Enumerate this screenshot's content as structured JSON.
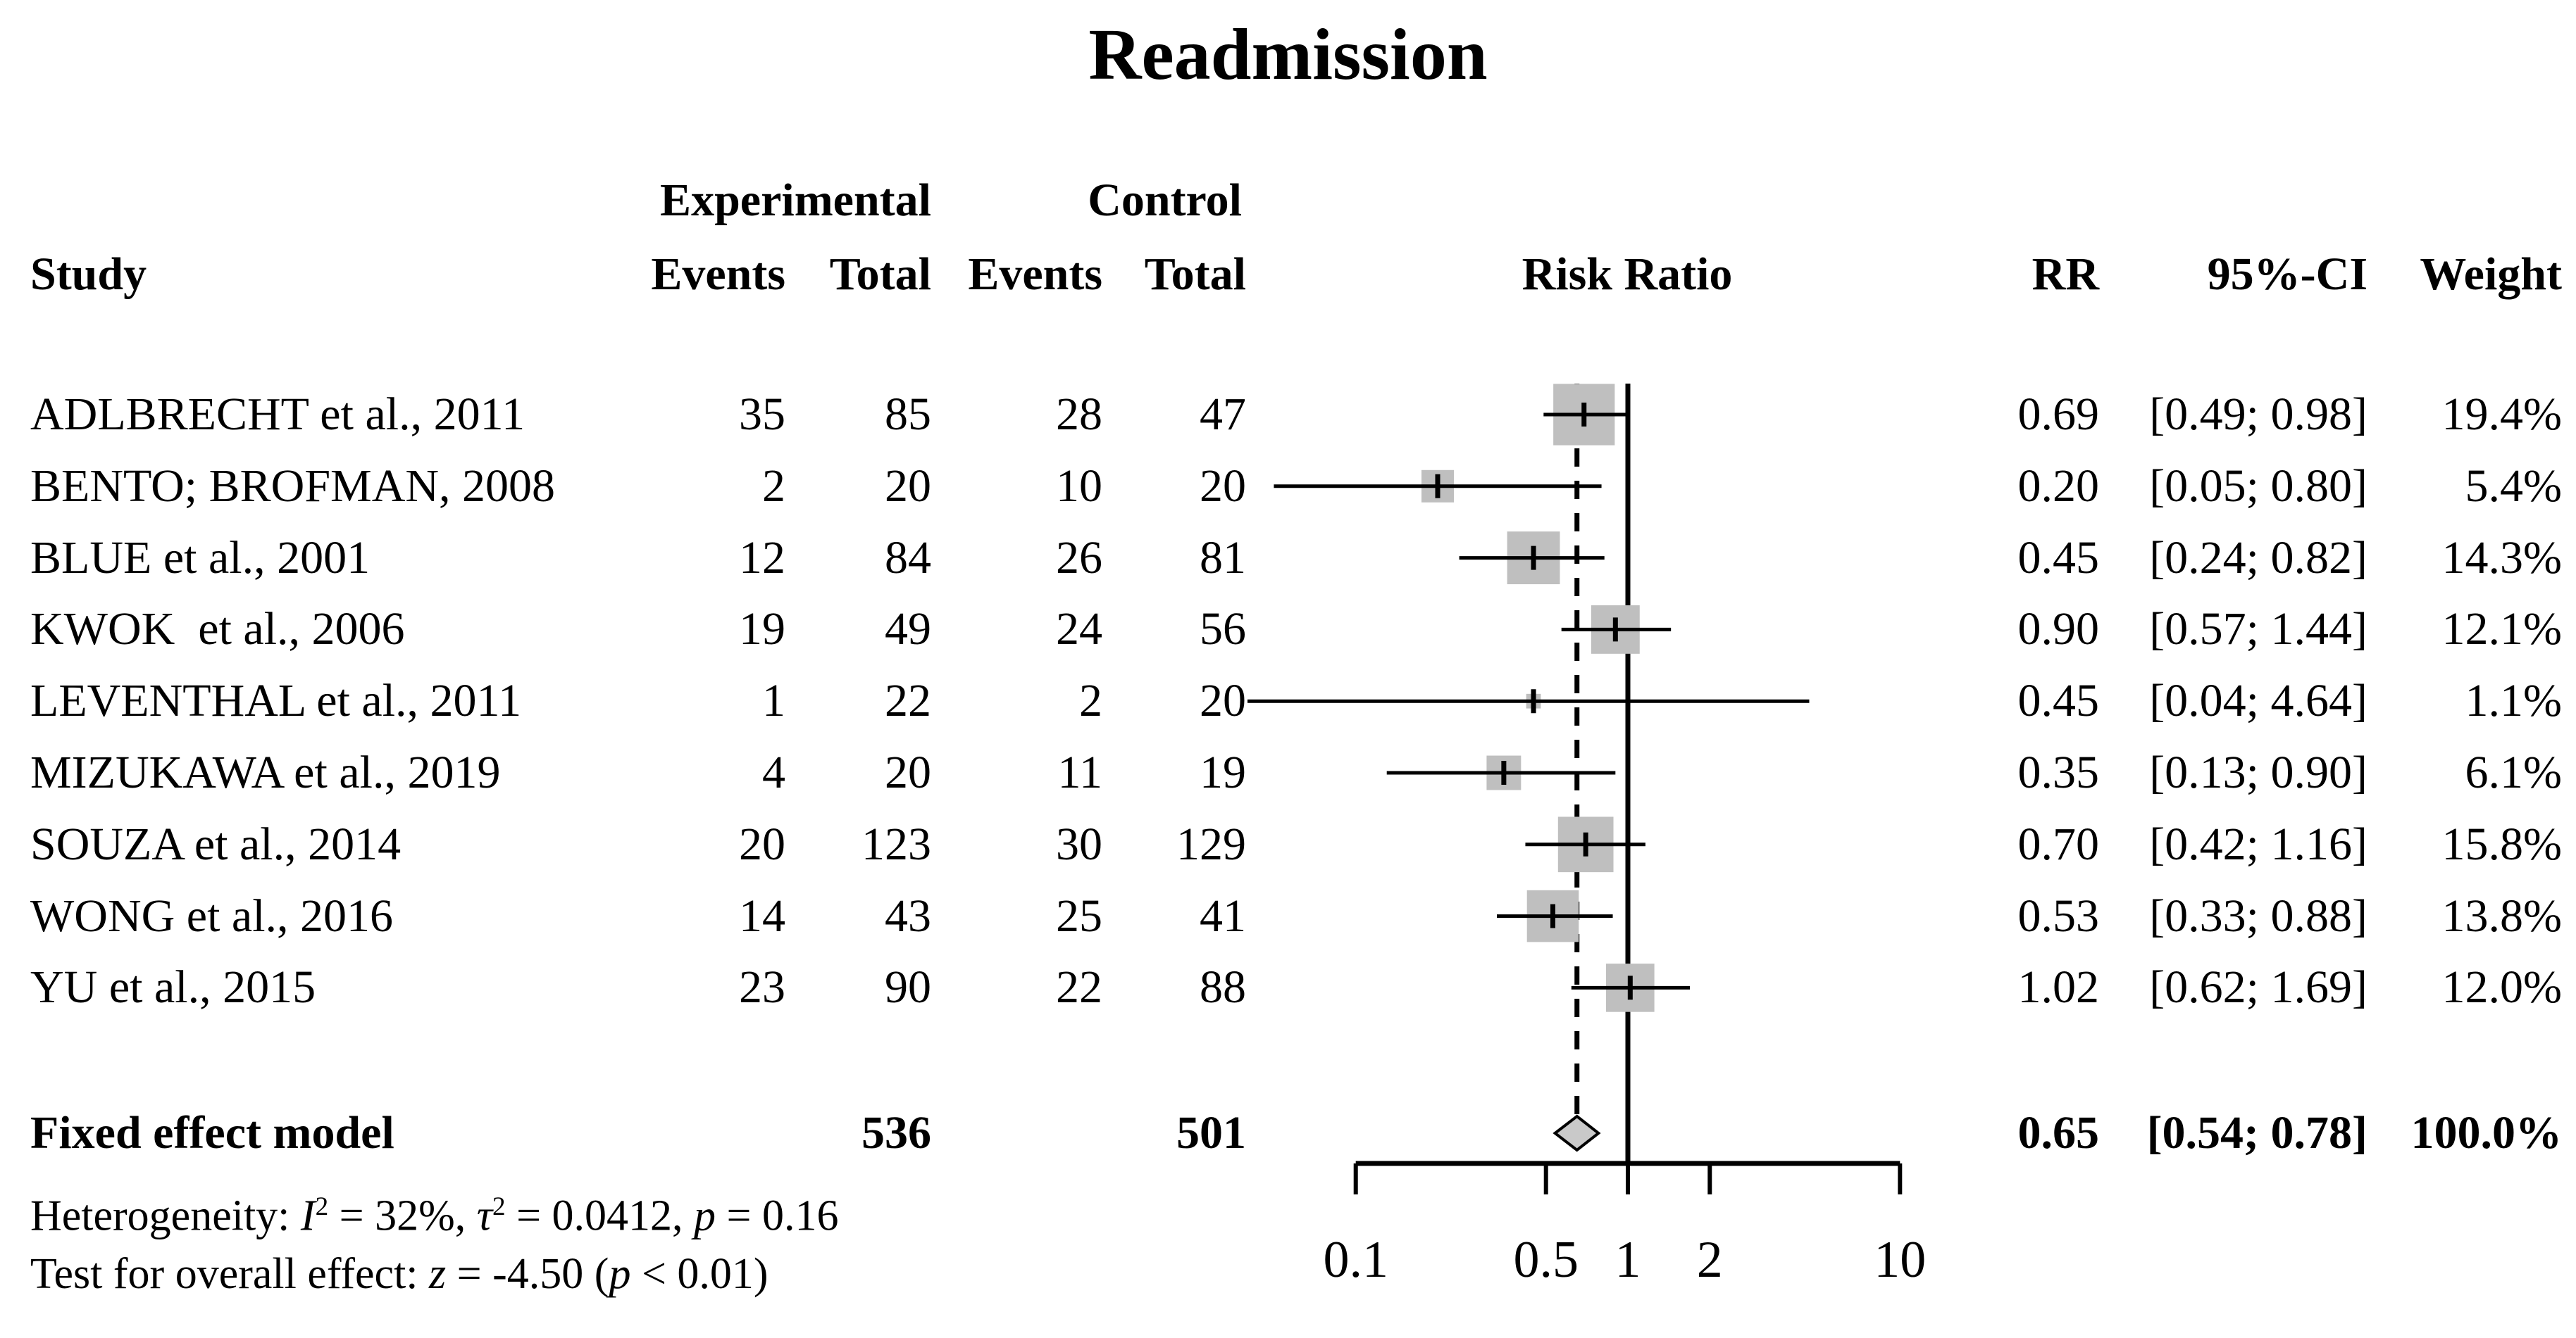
{
  "title": "Readmission",
  "header": {
    "group_experimental": "Experimental",
    "group_control": "Control",
    "study": "Study",
    "exp_events": "Events",
    "exp_total": "Total",
    "ctrl_events": "Events",
    "ctrl_total": "Total",
    "risk_ratio": "Risk Ratio",
    "rr": "RR",
    "ci": "95%-CI",
    "weight": "Weight"
  },
  "summary": {
    "label": "Fixed effect model",
    "exp_total": "536",
    "ctrl_total": "501",
    "rr": "0.65",
    "ci": "[0.54; 0.78]",
    "weight": "100.0%"
  },
  "stats": {
    "heterogeneity_runs": [
      {
        "t": "Heterogeneity: "
      },
      {
        "t": "I",
        "i": true
      },
      {
        "t": "2",
        "sup": true
      },
      {
        "t": " = 32%, "
      },
      {
        "t": "τ",
        "i": true
      },
      {
        "t": "2",
        "sup": true
      },
      {
        "t": " = 0.0412, "
      },
      {
        "t": "p",
        "i": true
      },
      {
        "t": " = 0.16"
      }
    ],
    "overall_effect_runs": [
      {
        "t": "Test for overall effect: "
      },
      {
        "t": "z",
        "i": true
      },
      {
        "t": " = -4.50 ("
      },
      {
        "t": "p",
        "i": true
      },
      {
        "t": " < 0.01)"
      }
    ]
  },
  "colors": {
    "square": "#bfbfbf",
    "diamond_fill": "#c9c9c9",
    "line": "#000000"
  },
  "chart_data": {
    "type": "forest",
    "title": "Readmission",
    "effect_measure": "Risk Ratio",
    "model": "Fixed effect model",
    "x_scale": "log",
    "x_ticks": [
      0.1,
      0.5,
      1,
      2,
      10
    ],
    "x_tick_labels": [
      "0.1",
      "0.5",
      "1",
      "2",
      "10"
    ],
    "x_range": [
      0.1,
      10
    ],
    "reference_line": 1,
    "pooled_line": 0.65,
    "studies": [
      {
        "name": "ADLBRECHT et al., 2011",
        "exp_events": 35,
        "exp_total": 85,
        "ctrl_events": 28,
        "ctrl_total": 47,
        "rr": 0.69,
        "ci_lo": 0.49,
        "ci_hi": 0.98,
        "weight_pct": 19.4
      },
      {
        "name": "BENTO; BROFMAN, 2008",
        "exp_events": 2,
        "exp_total": 20,
        "ctrl_events": 10,
        "ctrl_total": 20,
        "rr": 0.2,
        "ci_lo": 0.05,
        "ci_hi": 0.8,
        "weight_pct": 5.4
      },
      {
        "name": "BLUE et al., 2001",
        "exp_events": 12,
        "exp_total": 84,
        "ctrl_events": 26,
        "ctrl_total": 81,
        "rr": 0.45,
        "ci_lo": 0.24,
        "ci_hi": 0.82,
        "weight_pct": 14.3
      },
      {
        "name": "KWOK  et al., 2006",
        "exp_events": 19,
        "exp_total": 49,
        "ctrl_events": 24,
        "ctrl_total": 56,
        "rr": 0.9,
        "ci_lo": 0.57,
        "ci_hi": 1.44,
        "weight_pct": 12.1
      },
      {
        "name": "LEVENTHAL et al., 2011",
        "exp_events": 1,
        "exp_total": 22,
        "ctrl_events": 2,
        "ctrl_total": 20,
        "rr": 0.45,
        "ci_lo": 0.04,
        "ci_hi": 4.64,
        "weight_pct": 1.1
      },
      {
        "name": "MIZUKAWA et al., 2019",
        "exp_events": 4,
        "exp_total": 20,
        "ctrl_events": 11,
        "ctrl_total": 19,
        "rr": 0.35,
        "ci_lo": 0.13,
        "ci_hi": 0.9,
        "weight_pct": 6.1
      },
      {
        "name": "SOUZA et al., 2014",
        "exp_events": 20,
        "exp_total": 123,
        "ctrl_events": 30,
        "ctrl_total": 129,
        "rr": 0.7,
        "ci_lo": 0.42,
        "ci_hi": 1.16,
        "weight_pct": 15.8
      },
      {
        "name": "WONG et al., 2016",
        "exp_events": 14,
        "exp_total": 43,
        "ctrl_events": 25,
        "ctrl_total": 41,
        "rr": 0.53,
        "ci_lo": 0.33,
        "ci_hi": 0.88,
        "weight_pct": 13.8
      },
      {
        "name": "YU et al., 2015",
        "exp_events": 23,
        "exp_total": 90,
        "ctrl_events": 22,
        "ctrl_total": 88,
        "rr": 1.02,
        "ci_lo": 0.62,
        "ci_hi": 1.69,
        "weight_pct": 12.0
      }
    ],
    "pooled": {
      "label": "Fixed effect model",
      "exp_total": 536,
      "ctrl_total": 501,
      "rr": 0.65,
      "ci_lo": 0.54,
      "ci_hi": 0.78,
      "weight_pct": 100.0
    },
    "heterogeneity": {
      "I2_pct": 32,
      "tau2": 0.0412,
      "p": 0.16
    },
    "overall_effect": {
      "z": -4.5,
      "p": "< 0.01"
    }
  }
}
